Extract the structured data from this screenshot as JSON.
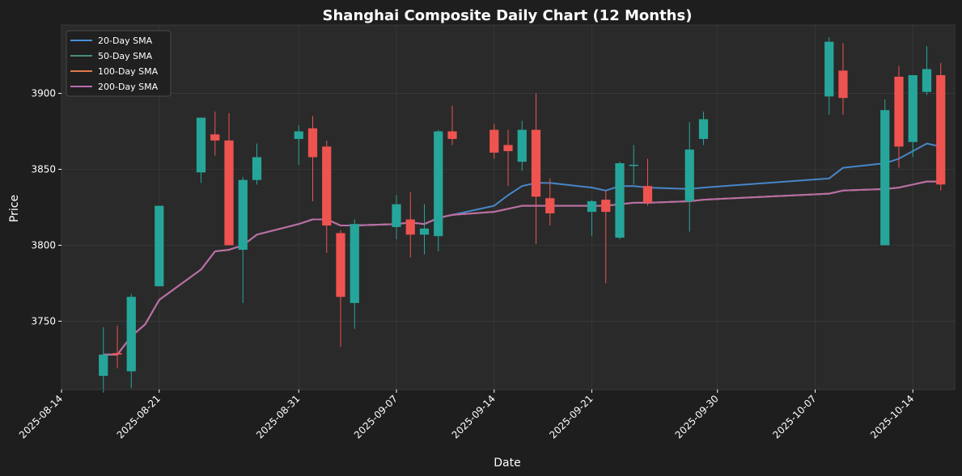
{
  "chart_data": {
    "type": "candlestick",
    "title": "Shanghai Composite Daily Chart (12 Months)",
    "xlabel": "Date",
    "ylabel": "Price",
    "xlim": [
      "2025-08-14",
      "2025-10-17"
    ],
    "ylim": [
      3705,
      3945
    ],
    "x_ticks": [
      "2025-08-14",
      "2025-08-21",
      "2025-08-31",
      "2025-09-07",
      "2025-09-14",
      "2025-09-21",
      "2025-09-30",
      "2025-10-07",
      "2025-10-14"
    ],
    "y_ticks": [
      3750,
      3800,
      3850,
      3900
    ],
    "grid": true,
    "legend_position": "top-left",
    "up_color": "#26a69a",
    "down_color": "#ef5350",
    "background": "#2a2a2a",
    "legend": [
      {
        "name": "20-Day SMA",
        "color": "#4a90d9"
      },
      {
        "name": "50-Day SMA",
        "color": "#4a8a7e"
      },
      {
        "name": "100-Day SMA",
        "color": "#e07a4a"
      },
      {
        "name": "200-Day SMA",
        "color": "#b86bb0"
      }
    ],
    "candles": [
      {
        "date": "2025-08-17",
        "open": 3714,
        "high": 3746,
        "low": 3703,
        "close": 3728
      },
      {
        "date": "2025-08-18",
        "open": 3729,
        "high": 3747,
        "low": 3719,
        "close": 3728
      },
      {
        "date": "2025-08-19",
        "open": 3717,
        "high": 3768,
        "low": 3706,
        "close": 3766
      },
      {
        "date": "2025-08-21",
        "open": 3773,
        "high": 3826,
        "low": 3773,
        "close": 3826
      },
      {
        "date": "2025-08-24",
        "open": 3848,
        "high": 3884,
        "low": 3841,
        "close": 3884
      },
      {
        "date": "2025-08-25",
        "open": 3873,
        "high": 3888,
        "low": 3859,
        "close": 3869
      },
      {
        "date": "2025-08-26",
        "open": 3869,
        "high": 3887,
        "low": 3800,
        "close": 3800
      },
      {
        "date": "2025-08-27",
        "open": 3797,
        "high": 3845,
        "low": 3762,
        "close": 3843
      },
      {
        "date": "2025-08-28",
        "open": 3843,
        "high": 3867,
        "low": 3840,
        "close": 3858
      },
      {
        "date": "2025-08-31",
        "open": 3870,
        "high": 3879,
        "low": 3853,
        "close": 3875
      },
      {
        "date": "2025-09-01",
        "open": 3877,
        "high": 3885,
        "low": 3829,
        "close": 3858
      },
      {
        "date": "2025-09-02",
        "open": 3865,
        "high": 3869,
        "low": 3795,
        "close": 3813
      },
      {
        "date": "2025-09-03",
        "open": 3808,
        "high": 3810,
        "low": 3733,
        "close": 3766
      },
      {
        "date": "2025-09-04",
        "open": 3762,
        "high": 3817,
        "low": 3745,
        "close": 3814
      },
      {
        "date": "2025-09-07",
        "open": 3812,
        "high": 3833,
        "low": 3804,
        "close": 3827
      },
      {
        "date": "2025-09-08",
        "open": 3817,
        "high": 3835,
        "low": 3792,
        "close": 3807
      },
      {
        "date": "2025-09-09",
        "open": 3807,
        "high": 3827,
        "low": 3794,
        "close": 3811
      },
      {
        "date": "2025-09-10",
        "open": 3806,
        "high": 3876,
        "low": 3796,
        "close": 3875
      },
      {
        "date": "2025-09-11",
        "open": 3875,
        "high": 3892,
        "low": 3866,
        "close": 3870
      },
      {
        "date": "2025-09-14",
        "open": 3876,
        "high": 3880,
        "low": 3857,
        "close": 3861
      },
      {
        "date": "2025-09-15",
        "open": 3866,
        "high": 3876,
        "low": 3839,
        "close": 3862
      },
      {
        "date": "2025-09-16",
        "open": 3855,
        "high": 3882,
        "low": 3849,
        "close": 3876
      },
      {
        "date": "2025-09-17",
        "open": 3876,
        "high": 3900,
        "low": 3801,
        "close": 3832
      },
      {
        "date": "2025-09-18",
        "open": 3831,
        "high": 3844,
        "low": 3813,
        "close": 3821
      },
      {
        "date": "2025-09-21",
        "open": 3822,
        "high": 3830,
        "low": 3806,
        "close": 3829
      },
      {
        "date": "2025-09-22",
        "open": 3830,
        "high": 3836,
        "low": 3775,
        "close": 3822
      },
      {
        "date": "2025-09-23",
        "open": 3805,
        "high": 3855,
        "low": 3804,
        "close": 3854
      },
      {
        "date": "2025-09-24",
        "open": 3853,
        "high": 3866,
        "low": 3840,
        "close": 3853
      },
      {
        "date": "2025-09-25",
        "open": 3839,
        "high": 3857,
        "low": 3826,
        "close": 3828
      },
      {
        "date": "2025-09-28",
        "open": 3829,
        "high": 3881,
        "low": 3809,
        "close": 3863
      },
      {
        "date": "2025-09-29",
        "open": 3870,
        "high": 3888,
        "low": 3866,
        "close": 3883
      },
      {
        "date": "2025-10-08",
        "open": 3898,
        "high": 3937,
        "low": 3886,
        "close": 3934
      },
      {
        "date": "2025-10-09",
        "open": 3915,
        "high": 3933,
        "low": 3886,
        "close": 3897
      },
      {
        "date": "2025-10-12",
        "open": 3800,
        "high": 3896,
        "low": 3800,
        "close": 3889
      },
      {
        "date": "2025-10-13",
        "open": 3911,
        "high": 3918,
        "low": 3851,
        "close": 3865
      },
      {
        "date": "2025-10-14",
        "open": 3868,
        "high": 3912,
        "low": 3858,
        "close": 3912
      },
      {
        "date": "2025-10-15",
        "open": 3901,
        "high": 3931,
        "low": 3899,
        "close": 3916
      },
      {
        "date": "2025-10-16",
        "open": 3912,
        "high": 3920,
        "low": 3836,
        "close": 3840
      }
    ],
    "series": [
      {
        "name": "20-Day SMA",
        "color": "#4a90d9",
        "points": [
          [
            "2025-08-17",
            3728
          ],
          [
            "2025-08-18",
            3728
          ],
          [
            "2025-08-19",
            3740
          ],
          [
            "2025-08-20",
            3748
          ],
          [
            "2025-08-21",
            3764
          ],
          [
            "2025-08-24",
            3784
          ],
          [
            "2025-08-25",
            3796
          ],
          [
            "2025-08-26",
            3797
          ],
          [
            "2025-08-27",
            3800
          ],
          [
            "2025-08-28",
            3807
          ],
          [
            "2025-08-31",
            3814
          ],
          [
            "2025-09-01",
            3817
          ],
          [
            "2025-09-02",
            3817
          ],
          [
            "2025-09-03",
            3813
          ],
          [
            "2025-09-04",
            3813
          ],
          [
            "2025-09-07",
            3814
          ],
          [
            "2025-09-08",
            3815
          ],
          [
            "2025-09-09",
            3814
          ],
          [
            "2025-09-10",
            3818
          ],
          [
            "2025-09-11",
            3820
          ],
          [
            "2025-09-14",
            3826
          ],
          [
            "2025-09-15",
            3833
          ],
          [
            "2025-09-16",
            3839
          ],
          [
            "2025-09-17",
            3841
          ],
          [
            "2025-09-18",
            3841
          ],
          [
            "2025-09-21",
            3838
          ],
          [
            "2025-09-22",
            3836
          ],
          [
            "2025-09-23",
            3839
          ],
          [
            "2025-09-24",
            3839
          ],
          [
            "2025-09-25",
            3838
          ],
          [
            "2025-09-28",
            3837
          ],
          [
            "2025-09-29",
            3838
          ],
          [
            "2025-10-08",
            3844
          ],
          [
            "2025-10-09",
            3851
          ],
          [
            "2025-10-12",
            3854
          ],
          [
            "2025-10-13",
            3857
          ],
          [
            "2025-10-14",
            3862
          ],
          [
            "2025-10-15",
            3867
          ],
          [
            "2025-10-16",
            3865
          ]
        ]
      },
      {
        "name": "50-Day SMA",
        "color": "#4a8a7e",
        "points": [
          [
            "2025-08-17",
            3728
          ],
          [
            "2025-08-18",
            3728
          ],
          [
            "2025-08-19",
            3740
          ],
          [
            "2025-08-20",
            3748
          ],
          [
            "2025-08-21",
            3764
          ],
          [
            "2025-08-24",
            3784
          ],
          [
            "2025-08-25",
            3796
          ],
          [
            "2025-08-26",
            3797
          ],
          [
            "2025-08-27",
            3800
          ],
          [
            "2025-08-28",
            3807
          ],
          [
            "2025-08-31",
            3814
          ],
          [
            "2025-09-01",
            3817
          ],
          [
            "2025-09-02",
            3817
          ],
          [
            "2025-09-03",
            3813
          ],
          [
            "2025-09-04",
            3813
          ],
          [
            "2025-09-07",
            3814
          ],
          [
            "2025-09-08",
            3815
          ],
          [
            "2025-09-09",
            3814
          ],
          [
            "2025-09-10",
            3818
          ],
          [
            "2025-09-11",
            3820
          ],
          [
            "2025-09-14",
            3822
          ],
          [
            "2025-09-15",
            3824
          ],
          [
            "2025-09-16",
            3826
          ],
          [
            "2025-09-17",
            3826
          ],
          [
            "2025-09-18",
            3826
          ],
          [
            "2025-09-21",
            3826
          ],
          [
            "2025-09-22",
            3826
          ],
          [
            "2025-09-23",
            3827
          ],
          [
            "2025-09-24",
            3828
          ],
          [
            "2025-09-25",
            3828
          ],
          [
            "2025-09-28",
            3829
          ],
          [
            "2025-09-29",
            3830
          ],
          [
            "2025-10-08",
            3834
          ],
          [
            "2025-10-09",
            3836
          ],
          [
            "2025-10-12",
            3837
          ],
          [
            "2025-10-13",
            3838
          ],
          [
            "2025-10-14",
            3840
          ],
          [
            "2025-10-15",
            3842
          ],
          [
            "2025-10-16",
            3842
          ]
        ]
      },
      {
        "name": "100-Day SMA",
        "color": "#e07a4a",
        "points": [
          [
            "2025-08-17",
            3728
          ],
          [
            "2025-08-18",
            3728
          ],
          [
            "2025-08-19",
            3740
          ],
          [
            "2025-08-20",
            3748
          ],
          [
            "2025-08-21",
            3764
          ],
          [
            "2025-08-24",
            3784
          ],
          [
            "2025-08-25",
            3796
          ],
          [
            "2025-08-26",
            3797
          ],
          [
            "2025-08-27",
            3800
          ],
          [
            "2025-08-28",
            3807
          ],
          [
            "2025-08-31",
            3814
          ],
          [
            "2025-09-01",
            3817
          ],
          [
            "2025-09-02",
            3817
          ],
          [
            "2025-09-03",
            3813
          ],
          [
            "2025-09-04",
            3813
          ],
          [
            "2025-09-07",
            3814
          ],
          [
            "2025-09-08",
            3815
          ],
          [
            "2025-09-09",
            3814
          ],
          [
            "2025-09-10",
            3818
          ],
          [
            "2025-09-11",
            3820
          ],
          [
            "2025-09-14",
            3822
          ],
          [
            "2025-09-15",
            3824
          ],
          [
            "2025-09-16",
            3826
          ],
          [
            "2025-09-17",
            3826
          ],
          [
            "2025-09-18",
            3826
          ],
          [
            "2025-09-21",
            3826
          ],
          [
            "2025-09-22",
            3826
          ],
          [
            "2025-09-23",
            3827
          ],
          [
            "2025-09-24",
            3828
          ],
          [
            "2025-09-25",
            3828
          ],
          [
            "2025-09-28",
            3829
          ],
          [
            "2025-09-29",
            3830
          ],
          [
            "2025-10-08",
            3834
          ],
          [
            "2025-10-09",
            3836
          ],
          [
            "2025-10-12",
            3837
          ],
          [
            "2025-10-13",
            3838
          ],
          [
            "2025-10-14",
            3840
          ],
          [
            "2025-10-15",
            3842
          ],
          [
            "2025-10-16",
            3842
          ]
        ]
      },
      {
        "name": "200-Day SMA",
        "color": "#b86bb0",
        "points": [
          [
            "2025-08-17",
            3728
          ],
          [
            "2025-08-18",
            3728
          ],
          [
            "2025-08-19",
            3740
          ],
          [
            "2025-08-20",
            3748
          ],
          [
            "2025-08-21",
            3764
          ],
          [
            "2025-08-24",
            3784
          ],
          [
            "2025-08-25",
            3796
          ],
          [
            "2025-08-26",
            3797
          ],
          [
            "2025-08-27",
            3800
          ],
          [
            "2025-08-28",
            3807
          ],
          [
            "2025-08-31",
            3814
          ],
          [
            "2025-09-01",
            3817
          ],
          [
            "2025-09-02",
            3817
          ],
          [
            "2025-09-03",
            3813
          ],
          [
            "2025-09-04",
            3813
          ],
          [
            "2025-09-07",
            3814
          ],
          [
            "2025-09-08",
            3815
          ],
          [
            "2025-09-09",
            3814
          ],
          [
            "2025-09-10",
            3818
          ],
          [
            "2025-09-11",
            3820
          ],
          [
            "2025-09-14",
            3822
          ],
          [
            "2025-09-15",
            3824
          ],
          [
            "2025-09-16",
            3826
          ],
          [
            "2025-09-17",
            3826
          ],
          [
            "2025-09-18",
            3826
          ],
          [
            "2025-09-21",
            3826
          ],
          [
            "2025-09-22",
            3826
          ],
          [
            "2025-09-23",
            3827
          ],
          [
            "2025-09-24",
            3828
          ],
          [
            "2025-09-25",
            3828
          ],
          [
            "2025-09-28",
            3829
          ],
          [
            "2025-09-29",
            3830
          ],
          [
            "2025-10-08",
            3834
          ],
          [
            "2025-10-09",
            3836
          ],
          [
            "2025-10-12",
            3837
          ],
          [
            "2025-10-13",
            3838
          ],
          [
            "2025-10-14",
            3840
          ],
          [
            "2025-10-15",
            3842
          ],
          [
            "2025-10-16",
            3842
          ]
        ]
      }
    ]
  }
}
